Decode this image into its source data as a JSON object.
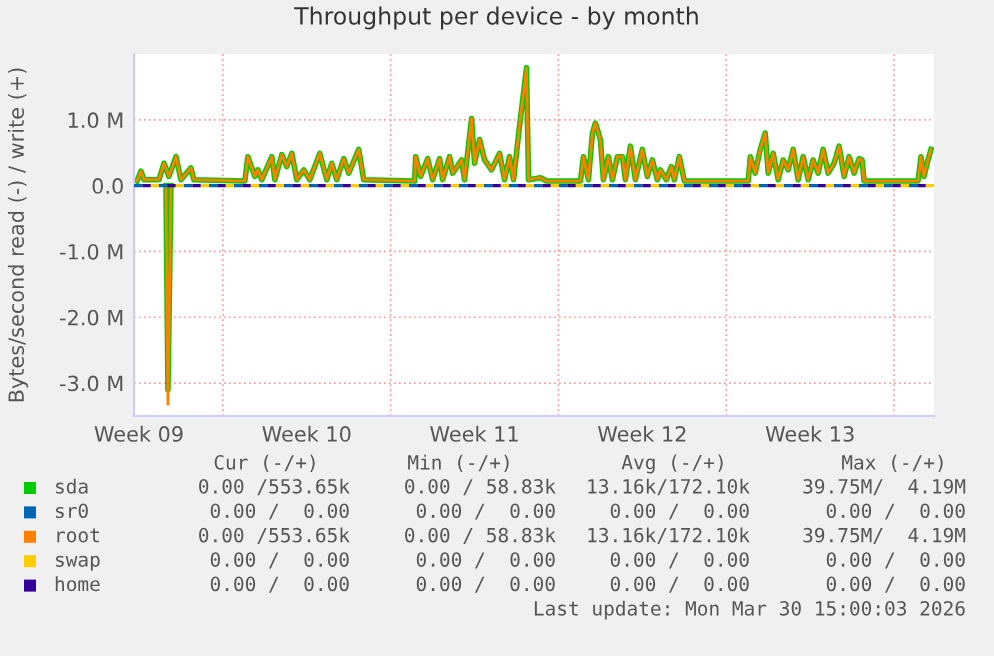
{
  "chart_data": {
    "type": "line",
    "title": "Throughput per device - by month",
    "ylabel": "Bytes/second read (-) / write (+)",
    "xlim": [
      "2026-02-25T07:00",
      "2026-03-30T16:00"
    ],
    "xticks": [
      {
        "value": "2026-02-25T12:00",
        "label": "Week 09"
      },
      {
        "value": "2026-03-01T00:00",
        "label": null
      },
      {
        "value": "2026-03-04T12:00",
        "label": "Week 10"
      },
      {
        "value": "2026-03-08T00:00",
        "label": null
      },
      {
        "value": "2026-03-11T12:00",
        "label": "Week 11"
      },
      {
        "value": "2026-03-15T00:00",
        "label": null
      },
      {
        "value": "2026-03-18T12:00",
        "label": "Week 12"
      },
      {
        "value": "2026-03-22T00:00",
        "label": null
      },
      {
        "value": "2026-03-25T12:00",
        "label": "Week 13"
      },
      {
        "value": "2026-03-29T00:00",
        "label": null
      }
    ],
    "ylim": [
      -3.5,
      2.0
    ],
    "yticks": [
      {
        "value": -3,
        "label": "-3.0 M"
      },
      {
        "value": -2,
        "label": "-2.0 M"
      },
      {
        "value": -1,
        "label": "-1.0 M"
      },
      {
        "value": 0,
        "label": "0.0"
      },
      {
        "value": 1,
        "label": "1.0 M"
      }
    ],
    "grid": true,
    "legend": "bottom",
    "series": [
      {
        "name": "sda",
        "color": "#00cc00",
        "x": [
          "2026-02-25T10:00",
          "2026-02-25T14:00",
          "2026-02-25T17:00",
          "2026-02-26T08:00",
          "2026-02-26T13:00",
          "2026-02-26T18:00",
          "2026-02-27T01:00",
          "2026-02-27T06:00",
          "2026-02-27T16:00",
          "2026-02-27T19:00",
          "2026-03-01T22:00",
          "2026-03-02T01:00",
          "2026-03-02T08:00",
          "2026-03-02T11:00",
          "2026-03-02T15:00",
          "2026-03-03T01:00",
          "2026-03-03T04:00",
          "2026-03-03T11:00",
          "2026-03-03T16:00",
          "2026-03-03T21:00",
          "2026-03-04T02:00",
          "2026-03-04T09:00",
          "2026-03-04T15:00",
          "2026-03-05T01:00",
          "2026-03-05T08:00",
          "2026-03-05T13:00",
          "2026-03-05T18:00",
          "2026-03-06T01:00",
          "2026-03-06T06:00",
          "2026-03-06T16:00",
          "2026-03-06T21:00",
          "2026-03-09T00:00",
          "2026-03-09T01:00",
          "2026-03-09T06:00",
          "2026-03-09T13:00",
          "2026-03-09T18:00",
          "2026-03-10T01:00",
          "2026-03-10T04:00",
          "2026-03-10T11:00",
          "2026-03-10T14:00",
          "2026-03-10T23:00",
          "2026-03-11T02:00",
          "2026-03-11T09:00",
          "2026-03-11T12:00",
          "2026-03-11T17:00",
          "2026-03-11T22:00",
          "2026-03-12T05:00",
          "2026-03-12T13:00",
          "2026-03-12T18:00",
          "2026-03-12T23:00",
          "2026-03-13T03:00",
          "2026-03-13T09:00",
          "2026-03-13T16:00",
          "2026-03-13T18:00",
          "2026-03-14T06:00",
          "2026-03-14T12:00",
          "2026-03-15T22:00",
          "2026-03-16T01:00",
          "2026-03-16T06:00",
          "2026-03-16T10:00",
          "2026-03-16T13:00",
          "2026-03-16T18:00",
          "2026-03-16T21:00",
          "2026-03-17T02:00",
          "2026-03-17T06:00",
          "2026-03-17T11:00",
          "2026-03-17T16:00",
          "2026-03-17T19:00",
          "2026-03-18T00:00",
          "2026-03-18T05:00",
          "2026-03-18T12:00",
          "2026-03-18T17:00",
          "2026-03-18T22:00",
          "2026-03-19T03:00",
          "2026-03-19T06:00",
          "2026-03-19T12:00",
          "2026-03-19T17:00",
          "2026-03-19T20:00",
          "2026-03-20T01:00",
          "2026-03-20T06:00",
          "2026-03-22T22:00",
          "2026-03-23T00:00",
          "2026-03-23T05:00",
          "2026-03-23T10:00",
          "2026-03-23T15:00",
          "2026-03-23T18:00",
          "2026-03-23T23:00",
          "2026-03-24T04:00",
          "2026-03-24T09:00",
          "2026-03-24T14:00",
          "2026-03-24T19:00",
          "2026-03-25T00:00",
          "2026-03-25T05:00",
          "2026-03-25T10:00",
          "2026-03-25T15:00",
          "2026-03-25T20:00",
          "2026-03-26T01:00",
          "2026-03-26T06:00",
          "2026-03-26T12:00",
          "2026-03-26T17:00",
          "2026-03-26T22:00",
          "2026-03-27T03:00",
          "2026-03-27T08:00",
          "2026-03-27T13:00",
          "2026-03-27T16:00",
          "2026-03-27T18:00",
          "2026-03-30T00:00",
          "2026-03-30T03:00",
          "2026-03-30T06:00",
          "2026-03-30T10:00",
          "2026-03-30T13:00"
        ],
        "values": [
          0.07,
          0.22,
          0.09,
          0.09,
          0.34,
          0.14,
          0.44,
          0.09,
          0.27,
          0.09,
          0.07,
          0.44,
          0.14,
          0.24,
          0.09,
          0.44,
          0.09,
          0.47,
          0.29,
          0.49,
          0.09,
          0.24,
          0.09,
          0.49,
          0.09,
          0.34,
          0.09,
          0.41,
          0.19,
          0.55,
          0.09,
          0.07,
          0.44,
          0.14,
          0.41,
          0.09,
          0.41,
          0.09,
          0.44,
          0.19,
          0.39,
          0.09,
          1.02,
          0.34,
          0.7,
          0.39,
          0.24,
          0.49,
          0.09,
          0.44,
          0.09,
          0.9,
          1.79,
          0.09,
          0.12,
          0.07,
          0.07,
          0.44,
          0.09,
          0.8,
          0.95,
          0.7,
          0.09,
          0.44,
          0.09,
          0.44,
          0.44,
          0.09,
          0.6,
          0.09,
          0.55,
          0.14,
          0.39,
          0.09,
          0.24,
          0.09,
          0.29,
          0.09,
          0.44,
          0.07,
          0.07,
          0.44,
          0.19,
          0.55,
          0.8,
          0.19,
          0.49,
          0.09,
          0.39,
          0.24,
          0.55,
          0.09,
          0.44,
          0.09,
          0.39,
          0.19,
          0.55,
          0.19,
          0.34,
          0.6,
          0.14,
          0.44,
          0.19,
          0.41,
          0.39,
          0.07,
          0.07,
          0.44,
          0.14,
          0.39,
          0.55
        ]
      },
      {
        "color": "#00cc00",
        "x": [
          "2026-02-26T15:00",
          "2026-02-26T17:00",
          "2026-02-26T20:00"
        ],
        "values": [
          0,
          -3.1,
          0
        ]
      },
      {
        "name": "sr0",
        "color": "#0066b3",
        "line_style": "dashed",
        "x": [
          "2026-02-25T07:00",
          "2026-03-30T16:00"
        ],
        "values": [
          0,
          0
        ]
      },
      {
        "name": "root",
        "color": "#ff8000",
        "x": [
          "2026-02-25T10:00",
          "2026-02-25T14:00",
          "2026-02-25T17:00",
          "2026-02-26T08:00",
          "2026-02-26T13:00",
          "2026-02-26T18:00",
          "2026-02-27T01:00",
          "2026-02-27T06:00",
          "2026-02-27T16:00",
          "2026-02-27T19:00",
          "2026-03-01T22:00",
          "2026-03-02T01:00",
          "2026-03-02T08:00",
          "2026-03-02T11:00",
          "2026-03-02T15:00",
          "2026-03-03T01:00",
          "2026-03-03T04:00",
          "2026-03-03T11:00",
          "2026-03-03T16:00",
          "2026-03-03T21:00",
          "2026-03-04T02:00",
          "2026-03-04T09:00",
          "2026-03-04T15:00",
          "2026-03-05T01:00",
          "2026-03-05T08:00",
          "2026-03-05T13:00",
          "2026-03-05T18:00",
          "2026-03-06T01:00",
          "2026-03-06T06:00",
          "2026-03-06T16:00",
          "2026-03-06T21:00",
          "2026-03-09T00:00",
          "2026-03-09T01:00",
          "2026-03-09T06:00",
          "2026-03-09T13:00",
          "2026-03-09T18:00",
          "2026-03-10T01:00",
          "2026-03-10T04:00",
          "2026-03-10T11:00",
          "2026-03-10T14:00",
          "2026-03-10T23:00",
          "2026-03-11T02:00",
          "2026-03-11T09:00",
          "2026-03-11T12:00",
          "2026-03-11T17:00",
          "2026-03-11T22:00",
          "2026-03-12T05:00",
          "2026-03-12T13:00",
          "2026-03-12T18:00",
          "2026-03-12T23:00",
          "2026-03-13T03:00",
          "2026-03-13T09:00",
          "2026-03-13T16:00",
          "2026-03-13T18:00",
          "2026-03-14T06:00",
          "2026-03-14T12:00",
          "2026-03-15T22:00",
          "2026-03-16T01:00",
          "2026-03-16T06:00",
          "2026-03-16T10:00",
          "2026-03-16T13:00",
          "2026-03-16T18:00",
          "2026-03-16T21:00",
          "2026-03-17T02:00",
          "2026-03-17T06:00",
          "2026-03-17T11:00",
          "2026-03-17T16:00",
          "2026-03-17T19:00",
          "2026-03-18T00:00",
          "2026-03-18T05:00",
          "2026-03-18T12:00",
          "2026-03-18T17:00",
          "2026-03-18T22:00",
          "2026-03-19T03:00",
          "2026-03-19T06:00",
          "2026-03-19T12:00",
          "2026-03-19T17:00",
          "2026-03-19T20:00",
          "2026-03-20T01:00",
          "2026-03-20T06:00",
          "2026-03-22T22:00",
          "2026-03-23T00:00",
          "2026-03-23T05:00",
          "2026-03-23T10:00",
          "2026-03-23T15:00",
          "2026-03-23T18:00",
          "2026-03-23T23:00",
          "2026-03-24T04:00",
          "2026-03-24T09:00",
          "2026-03-24T14:00",
          "2026-03-24T19:00",
          "2026-03-25T00:00",
          "2026-03-25T05:00",
          "2026-03-25T10:00",
          "2026-03-25T15:00",
          "2026-03-25T20:00",
          "2026-03-26T01:00",
          "2026-03-26T06:00",
          "2026-03-26T12:00",
          "2026-03-26T17:00",
          "2026-03-26T22:00",
          "2026-03-27T03:00",
          "2026-03-27T08:00",
          "2026-03-27T13:00",
          "2026-03-27T16:00",
          "2026-03-27T18:00",
          "2026-03-30T00:00",
          "2026-03-30T03:00",
          "2026-03-30T06:00",
          "2026-03-30T10:00",
          "2026-03-30T13:00"
        ],
        "values": [
          0.07,
          0.22,
          0.09,
          0.09,
          0.34,
          0.14,
          0.44,
          0.09,
          0.27,
          0.09,
          0.07,
          0.44,
          0.14,
          0.24,
          0.09,
          0.44,
          0.09,
          0.47,
          0.29,
          0.49,
          0.09,
          0.24,
          0.09,
          0.49,
          0.09,
          0.34,
          0.09,
          0.41,
          0.19,
          0.55,
          0.09,
          0.07,
          0.44,
          0.14,
          0.41,
          0.09,
          0.41,
          0.09,
          0.44,
          0.19,
          0.39,
          0.09,
          1.02,
          0.34,
          0.7,
          0.39,
          0.24,
          0.49,
          0.09,
          0.44,
          0.09,
          0.9,
          1.79,
          0.09,
          0.12,
          0.07,
          0.07,
          0.44,
          0.09,
          0.8,
          0.95,
          0.7,
          0.09,
          0.44,
          0.09,
          0.44,
          0.44,
          0.09,
          0.6,
          0.09,
          0.55,
          0.14,
          0.39,
          0.09,
          0.24,
          0.09,
          0.29,
          0.09,
          0.44,
          0.07,
          0.07,
          0.44,
          0.19,
          0.55,
          0.8,
          0.19,
          0.49,
          0.09,
          0.39,
          0.24,
          0.55,
          0.09,
          0.44,
          0.09,
          0.39,
          0.19,
          0.55,
          0.19,
          0.34,
          0.6,
          0.14,
          0.44,
          0.19,
          0.41,
          0.39,
          0.07,
          0.07,
          0.44,
          0.14,
          0.39,
          0.55
        ]
      },
      {
        "color": "#ff8000",
        "x": [
          "2026-02-26T15:00",
          "2026-02-26T17:00",
          "2026-02-26T20:00"
        ],
        "values": [
          0,
          -3.32,
          0
        ]
      },
      {
        "name": "swap",
        "color": "#ffcc00",
        "line_style": "dashed",
        "x": [
          "2026-02-25T07:00",
          "2026-03-30T16:00"
        ],
        "values": [
          0,
          0
        ]
      },
      {
        "name": "home",
        "color": "#330099",
        "line_style": "dashed",
        "x": [
          "2026-02-25T07:00",
          "2026-03-30T16:00"
        ],
        "values": [
          0,
          0
        ]
      }
    ],
    "annotations": [
      "Cur (-/+)",
      "Min (-/+)",
      "Avg (-/+)",
      "Max (-/+)",
      "0.00 /553.65k",
      "0.00 / 58.83k",
      "13.16k/172.10k",
      "39.75M/  4.19M",
      "0.00 /  0.00",
      "0.00 /  0.00",
      "0.00 /  0.00",
      "0.00 /  0.00",
      "0.00 /553.65k",
      "0.00 / 58.83k",
      "13.16k/172.10k",
      "39.75M/  4.19M",
      "0.00 /  0.00",
      "0.00 /  0.00",
      "0.00 /  0.00",
      "0.00 /  0.00",
      "0.00 /  0.00",
      "0.00 /  0.00",
      "0.00 /  0.00",
      "0.00 /  0.00",
      "Last update: Mon Mar 30 15:00:03 2026"
    ]
  }
}
